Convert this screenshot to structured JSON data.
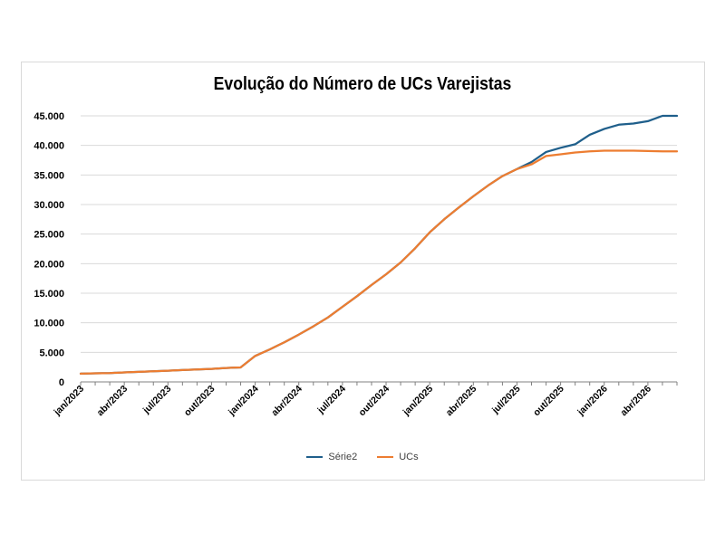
{
  "chart_data": {
    "type": "line",
    "title": "Evolução do Número de UCs Varejistas",
    "xlabel": "",
    "ylabel": "",
    "ylim": [
      0,
      45000
    ],
    "y_ticks": [
      0,
      5000,
      10000,
      15000,
      20000,
      25000,
      30000,
      35000,
      40000,
      45000
    ],
    "y_tick_labels": [
      "0",
      "5.000",
      "10.000",
      "15.000",
      "20.000",
      "25.000",
      "30.000",
      "35.000",
      "40.000",
      "45.000"
    ],
    "x_tick_labels": [
      "jan/2023",
      "abr/2023",
      "jul/2023",
      "out/2023",
      "jan/2024",
      "abr/2024",
      "jul/2024",
      "out/2024",
      "jan/2025",
      "abr/2025",
      "jul/2025",
      "out/2025",
      "jan/2026",
      "abr/2026"
    ],
    "x": [
      "jan/2023",
      "fev/2023",
      "mar/2023",
      "abr/2023",
      "mai/2023",
      "jun/2023",
      "jul/2023",
      "ago/2023",
      "set/2023",
      "out/2023",
      "nov/2023",
      "dez/2023",
      "jan/2024",
      "fev/2024",
      "mar/2024",
      "abr/2024",
      "mai/2024",
      "jun/2024",
      "jul/2024",
      "ago/2024",
      "set/2024",
      "out/2024",
      "nov/2024",
      "dez/2024",
      "jan/2025",
      "fev/2025",
      "mar/2025",
      "abr/2025",
      "mai/2025",
      "jun/2025",
      "jul/2025",
      "ago/2025",
      "set/2025",
      "out/2025",
      "nov/2025",
      "dez/2025",
      "jan/2026",
      "fev/2026",
      "mar/2026",
      "abr/2026",
      "mai/2026",
      "jun/2026"
    ],
    "grid": true,
    "legend_position": "bottom",
    "series": [
      {
        "name": "Série2",
        "color": "#1f5f8b",
        "values": [
          1400,
          1450,
          1500,
          1600,
          1700,
          1800,
          1900,
          2000,
          2100,
          2200,
          2350,
          2450,
          4400,
          5500,
          6700,
          8000,
          9400,
          10900,
          12700,
          14500,
          16400,
          18200,
          20200,
          22600,
          25300,
          27500,
          29500,
          31400,
          33200,
          34800,
          36000,
          37200,
          38900,
          39600,
          40200,
          41800,
          42800,
          43500,
          43700,
          44100,
          45000,
          45000
        ]
      },
      {
        "name": "UCs",
        "color": "#ed7d31",
        "values": [
          1400,
          1450,
          1500,
          1600,
          1700,
          1800,
          1900,
          2000,
          2100,
          2200,
          2350,
          2450,
          4400,
          5500,
          6700,
          8000,
          9400,
          10900,
          12700,
          14500,
          16400,
          18200,
          20200,
          22600,
          25300,
          27500,
          29500,
          31400,
          33200,
          34800,
          36000,
          36800,
          38200,
          38500,
          38800,
          39000,
          39100,
          39100,
          39100,
          39050,
          39000,
          39000
        ]
      }
    ]
  }
}
